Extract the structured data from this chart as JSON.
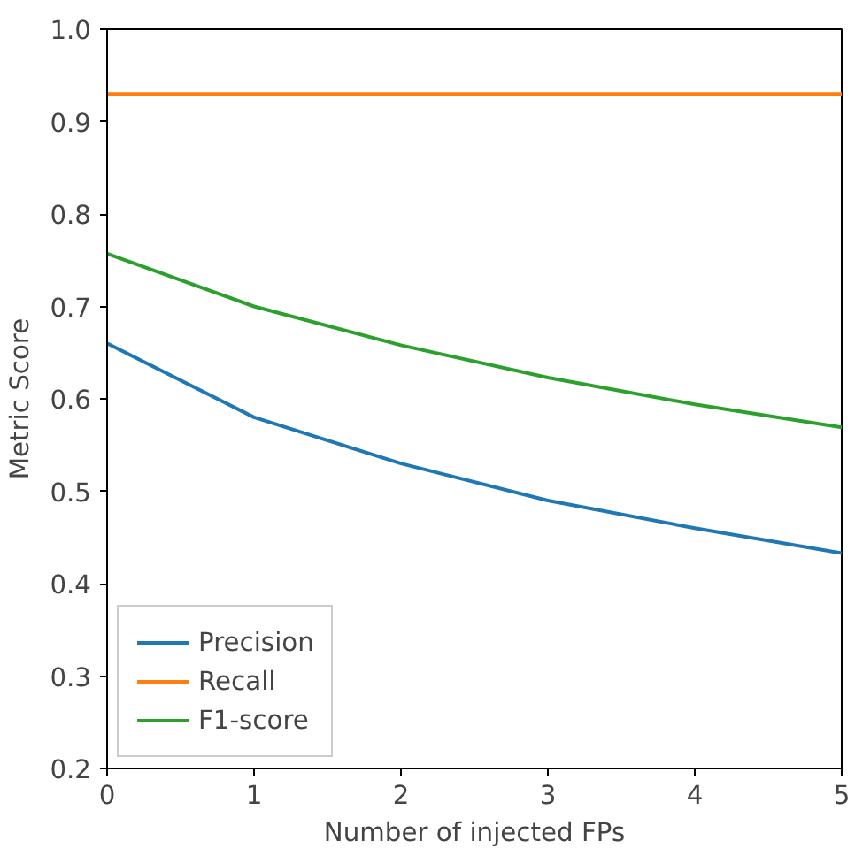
{
  "chart_data": {
    "type": "line",
    "xlabel": "Number of injected FPs",
    "ylabel": "Metric Score",
    "x": [
      0,
      1,
      2,
      3,
      4,
      5
    ],
    "series": [
      {
        "name": "Precision",
        "color": "#1f77b4",
        "values": [
          0.66,
          0.58,
          0.53,
          0.49,
          0.46,
          0.433
        ]
      },
      {
        "name": "Recall",
        "color": "#ff7f0e",
        "values": [
          0.93,
          0.93,
          0.93,
          0.93,
          0.93,
          0.93
        ]
      },
      {
        "name": "F1-score",
        "color": "#2ca02c",
        "values": [
          0.757,
          0.7,
          0.658,
          0.623,
          0.594,
          0.569
        ]
      }
    ],
    "xlim": [
      0,
      5
    ],
    "xticks": [
      0,
      1,
      2,
      3,
      4,
      5
    ],
    "ylim": [
      0.2,
      1.0
    ],
    "yticks": [
      {
        "value": 0.2,
        "label": "0.2"
      },
      {
        "value": 0.3,
        "label": "0.3"
      },
      {
        "value": 0.4,
        "label": "0.4"
      },
      {
        "value": 0.5,
        "label": "0.5"
      },
      {
        "value": 0.6,
        "label": "0.6"
      },
      {
        "value": 0.7,
        "label": "0.7"
      },
      {
        "value": 0.8,
        "label": "0.8"
      },
      {
        "value": 0.9,
        "label": "0.9"
      },
      {
        "value": 1.0,
        "label": "1.0"
      }
    ],
    "grid": false,
    "legend": "bottom left",
    "marker": "none",
    "line_style": "solid"
  }
}
